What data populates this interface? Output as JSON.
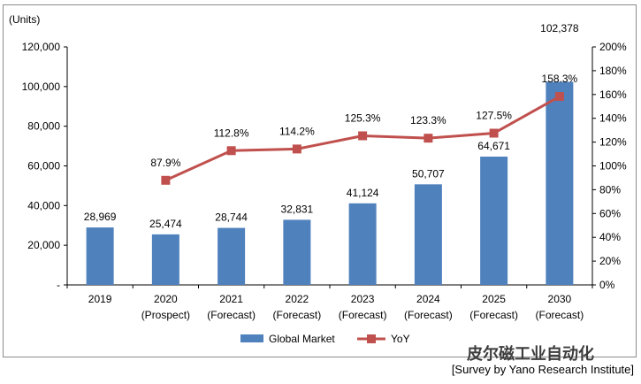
{
  "chart_data": {
    "type": "bar",
    "unit_label": "(Units)",
    "categories": [
      {
        "year": "2019",
        "note": ""
      },
      {
        "year": "2020",
        "note": "(Prospect)"
      },
      {
        "year": "2021",
        "note": "(Forecast)"
      },
      {
        "year": "2022",
        "note": "(Forecast)"
      },
      {
        "year": "2023",
        "note": "(Forecast)"
      },
      {
        "year": "2024",
        "note": "(Forecast)"
      },
      {
        "year": "2025",
        "note": "(Forecast)"
      },
      {
        "year": "2030",
        "note": "(Forecast)"
      }
    ],
    "series": [
      {
        "name": "Global  Market",
        "type": "bar",
        "axis": "left",
        "color": "#4f81bd",
        "values": [
          28969,
          25474,
          28744,
          32831,
          41124,
          50707,
          64671,
          102378
        ],
        "labels": [
          "28,969",
          "25,474",
          "28,744",
          "32,831",
          "41,124",
          "50,707",
          "64,671",
          "102,378"
        ]
      },
      {
        "name": "YoY",
        "type": "line",
        "axis": "right",
        "color": "#c0504d",
        "values": [
          null,
          87.9,
          112.8,
          114.2,
          125.3,
          123.3,
          127.5,
          158.3
        ],
        "labels": [
          "",
          "87.9%",
          "112.8%",
          "114.2%",
          "125.3%",
          "123.3%",
          "127.5%",
          "158.3%"
        ]
      }
    ],
    "y_left": {
      "min": 0,
      "max": 120000,
      "ticks": [
        "-",
        "20,000",
        "40,000",
        "60,000",
        "80,000",
        "100,000",
        "120,000"
      ]
    },
    "y_right": {
      "min": 0,
      "max": 200,
      "ticks": [
        "0%",
        "20%",
        "40%",
        "60%",
        "80%",
        "100%",
        "120%",
        "140%",
        "160%",
        "180%",
        "200%"
      ]
    },
    "legend_position": "bottom",
    "grid": false
  },
  "source": "[Survey by Yano Research Institute]",
  "watermark": "皮尔磁工业自动化"
}
